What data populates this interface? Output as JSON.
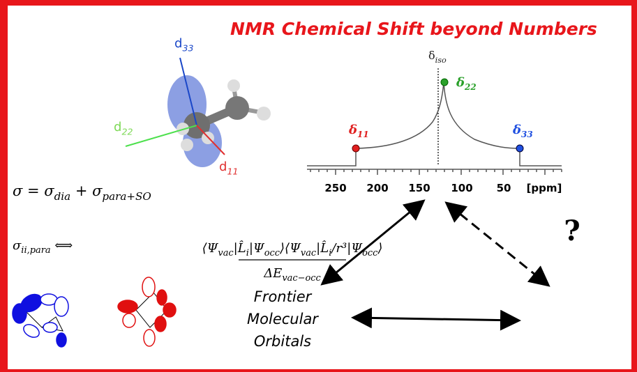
{
  "header": {
    "title": "NMR Chemical Shift beyond Numbers"
  },
  "molecule": {
    "axes": [
      {
        "d": "d",
        "sub": "33",
        "color": "#1a47c8"
      },
      {
        "d": "d",
        "sub": "22",
        "color": "#7ed957"
      },
      {
        "d": "d",
        "sub": "11",
        "color": "#e03030"
      }
    ]
  },
  "spectrum": {
    "iso": {
      "d": "δ",
      "sub": "iso"
    },
    "peaks": [
      {
        "d": "δ",
        "sub": "11",
        "color": "#e02020"
      },
      {
        "d": "δ",
        "sub": "22",
        "color": "#2aa02a"
      },
      {
        "d": "δ",
        "sub": "33",
        "color": "#2050e0"
      }
    ],
    "ticks": [
      "250",
      "200",
      "150",
      "100",
      "50",
      "[ppm]"
    ]
  },
  "equations": [
    [
      {
        "t": "σ = σ"
      },
      {
        "t": "dia",
        "sub": true
      },
      {
        "t": " + σ"
      },
      {
        "t": "para+SO",
        "sub": true
      }
    ],
    [
      {
        "t": "σ"
      },
      {
        "t": "ii,para",
        "sub": true
      },
      {
        "t": " ⟺"
      }
    ]
  ],
  "fraction": {
    "numerator": [
      {
        "t": "⟨Ψ"
      },
      {
        "t": "vac",
        "sub": true
      },
      {
        "t": "|L̂"
      },
      {
        "t": "i",
        "sub": true
      },
      {
        "t": "|Ψ"
      },
      {
        "t": "occ",
        "sub": true
      },
      {
        "t": "⟩⟨Ψ"
      },
      {
        "t": "vac",
        "sub": true
      },
      {
        "t": "|L̂"
      },
      {
        "t": "i",
        "sub": true
      },
      {
        "t": "/r³|Ψ"
      },
      {
        "t": "occ",
        "sub": true
      },
      {
        "t": "⟩"
      }
    ],
    "denominator": [
      {
        "t": "ΔE"
      },
      {
        "t": "vac−occ",
        "sub": true
      }
    ]
  },
  "question": "?",
  "fmo": [
    "Frontier",
    "Molecular",
    "Orbitals"
  ]
}
